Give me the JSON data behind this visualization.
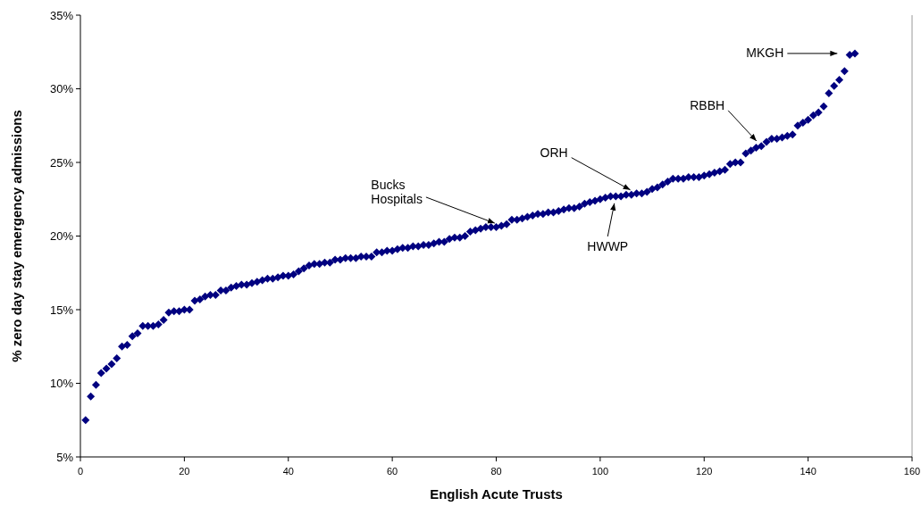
{
  "chart_data": {
    "type": "scatter",
    "xlabel": "English Acute Trusts",
    "ylabel": "% zero day stay emergency admissions",
    "x": [
      1,
      2,
      3,
      4,
      5,
      6,
      7,
      8,
      9,
      10,
      11,
      12,
      13,
      14,
      15,
      16,
      17,
      18,
      19,
      20,
      21,
      22,
      23,
      24,
      25,
      26,
      27,
      28,
      29,
      30,
      31,
      32,
      33,
      34,
      35,
      36,
      37,
      38,
      39,
      40,
      41,
      42,
      43,
      44,
      45,
      46,
      47,
      48,
      49,
      50,
      51,
      52,
      53,
      54,
      55,
      56,
      57,
      58,
      59,
      60,
      61,
      62,
      63,
      64,
      65,
      66,
      67,
      68,
      69,
      70,
      71,
      72,
      73,
      74,
      75,
      76,
      77,
      78,
      79,
      80,
      81,
      82,
      83,
      84,
      85,
      86,
      87,
      88,
      89,
      90,
      91,
      92,
      93,
      94,
      95,
      96,
      97,
      98,
      99,
      100,
      101,
      102,
      103,
      104,
      105,
      106,
      107,
      108,
      109,
      110,
      111,
      112,
      113,
      114,
      115,
      116,
      117,
      118,
      119,
      120,
      121,
      122,
      123,
      124,
      125,
      126,
      127,
      128,
      129,
      130,
      131,
      132,
      133,
      134,
      135,
      136,
      137,
      138,
      139,
      140,
      141,
      142,
      143,
      144,
      145,
      146,
      147,
      148,
      149
    ],
    "series": [
      {
        "color": "#000080",
        "values": [
          7.5,
          9.1,
          9.9,
          10.7,
          11.0,
          11.3,
          11.7,
          12.5,
          12.6,
          13.2,
          13.4,
          13.9,
          13.9,
          13.9,
          14.0,
          14.3,
          14.8,
          14.9,
          14.9,
          15.0,
          15.0,
          15.6,
          15.7,
          15.9,
          16.0,
          16.0,
          16.3,
          16.3,
          16.5,
          16.6,
          16.7,
          16.7,
          16.8,
          16.9,
          17.0,
          17.1,
          17.1,
          17.2,
          17.3,
          17.3,
          17.4,
          17.6,
          17.8,
          18.0,
          18.1,
          18.1,
          18.2,
          18.2,
          18.4,
          18.4,
          18.5,
          18.5,
          18.5,
          18.6,
          18.6,
          18.6,
          18.9,
          18.9,
          19.0,
          19.0,
          19.1,
          19.2,
          19.2,
          19.3,
          19.3,
          19.4,
          19.4,
          19.5,
          19.6,
          19.6,
          19.8,
          19.9,
          19.9,
          20.0,
          20.3,
          20.4,
          20.5,
          20.6,
          20.6,
          20.6,
          20.7,
          20.8,
          21.1,
          21.1,
          21.2,
          21.3,
          21.4,
          21.5,
          21.5,
          21.6,
          21.6,
          21.7,
          21.8,
          21.9,
          21.9,
          22.0,
          22.2,
          22.3,
          22.4,
          22.5,
          22.6,
          22.7,
          22.7,
          22.7,
          22.8,
          22.8,
          22.9,
          22.9,
          23.0,
          23.2,
          23.3,
          23.5,
          23.7,
          23.9,
          23.9,
          23.9,
          24.0,
          24.0,
          24.0,
          24.1,
          24.2,
          24.3,
          24.4,
          24.5,
          24.9,
          25.0,
          25.0,
          25.6,
          25.8,
          26.0,
          26.1,
          26.4,
          26.6,
          26.6,
          26.7,
          26.8,
          26.9,
          27.5,
          27.7,
          27.9,
          28.2,
          28.4,
          28.8,
          29.7,
          30.2,
          30.6,
          31.2,
          32.3,
          32.4
        ]
      }
    ],
    "xlim": [
      0,
      160
    ],
    "xticks": [
      0,
      20,
      40,
      60,
      80,
      100,
      120,
      140,
      160
    ],
    "ylim": [
      5,
      35
    ],
    "yticks": [
      {
        "value": 5,
        "label": "5%"
      },
      {
        "value": 10,
        "label": "10%"
      },
      {
        "value": 15,
        "label": "15%"
      },
      {
        "value": 20,
        "label": "20%"
      },
      {
        "value": 25,
        "label": "25%"
      },
      {
        "value": 30,
        "label": "30%"
      },
      {
        "value": 35,
        "label": "35%"
      }
    ],
    "marker": "diamond",
    "grid": false,
    "annotations": [
      {
        "text": "Bucks\nHospitals",
        "x": 81,
        "y": 20.7
      },
      {
        "text": "ORH",
        "x": 107,
        "y": 22.9
      },
      {
        "text": "HWWP",
        "x": 103,
        "y": 22.7
      },
      {
        "text": "RBBH",
        "x": 131,
        "y": 26.1
      },
      {
        "text": "MKGH",
        "x": 147,
        "y": 32.4
      }
    ]
  }
}
